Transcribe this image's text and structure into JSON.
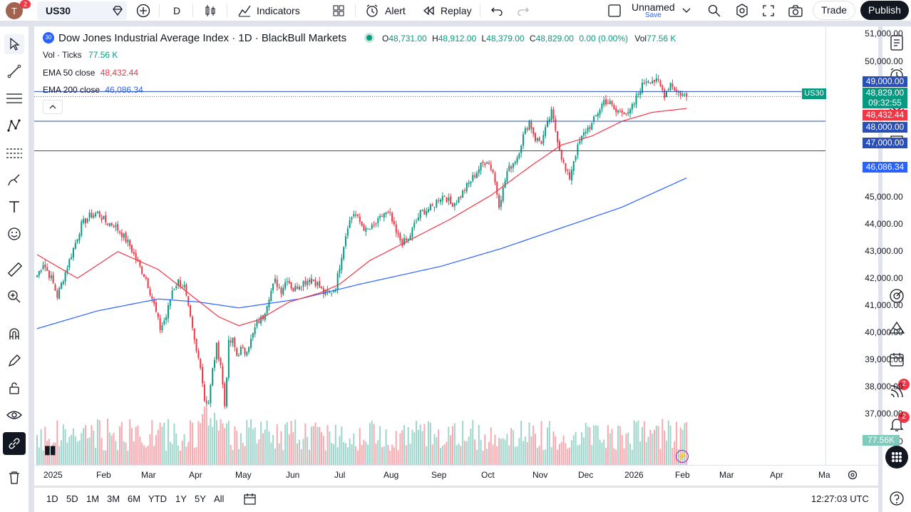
{
  "topbar": {
    "avatar_letter": "T",
    "avatar_badge": "2",
    "symbol": "US30",
    "interval": "D",
    "indicators_label": "Indicators",
    "alert_label": "Alert",
    "replay_label": "Replay",
    "layout_name": "Unnamed",
    "layout_sub": "Save",
    "trade_label": "Trade",
    "publish_label": "Publish"
  },
  "legend": {
    "symbol_badge": "30",
    "title": "Dow Jones Industrial Average Index · 1D · BlackBull Markets",
    "o_label": "O",
    "o_value": "48,731.00",
    "h_label": "H",
    "h_value": "48,912.00",
    "l_label": "L",
    "l_value": "48,379.00",
    "c_label": "C",
    "c_value": "48,829.00",
    "change": "0.00 (0.00%)",
    "vol_label": "Vol",
    "vol_value": "77.56 K",
    "vol_ticks_label": "Vol · Ticks",
    "vol_ticks_value": "77.56 K",
    "ema50_label": "EMA 50 close",
    "ema50_value": "48,432.44",
    "ema200_label": "EMA 200 close",
    "ema200_value": "46,086.34"
  },
  "price_axis": {
    "labels": [
      "51,000.00",
      "50,000.00",
      "49,000.00",
      "48,000.00",
      "47,000.00",
      "45,000.00",
      "44,000.00",
      "43,000.00",
      "42,000.00",
      "41,000.00",
      "40,000.00",
      "39,000.00",
      "38,000.00",
      "37,000.00",
      "00"
    ],
    "badges": {
      "line_49000": "49,000.00",
      "last_price": "48,829.00",
      "countdown": "09:32:55",
      "ema50": "48,432.44",
      "line_48000": "48,000.00",
      "line_47000": "47,000.00",
      "ema200": "46,086.34",
      "volume": "77.56K",
      "symbol_tag": "US30"
    }
  },
  "time_axis": [
    "2025",
    "Feb",
    "Mar",
    "Apr",
    "May",
    "Jun",
    "Jul",
    "Aug",
    "Sep",
    "Oct",
    "Nov",
    "Dec",
    "2026",
    "Feb",
    "Mar",
    "Apr",
    "Ma"
  ],
  "bottombar": {
    "ranges": [
      "1D",
      "5D",
      "1M",
      "3M",
      "6M",
      "YTD",
      "1Y",
      "5Y",
      "All"
    ],
    "clock": "12:27:03 UTC"
  },
  "rightbar_badges": {
    "ideas": "2",
    "notifications": "2"
  },
  "colors": {
    "up": "#089981",
    "down": "#f23645",
    "ema50": "#f23645",
    "ema200": "#2962ff",
    "hline": "#2a4fb5",
    "accent": "#2962ff"
  },
  "chart_data": {
    "type": "candlestick",
    "ylim": [
      36400,
      51200
    ],
    "horizontal_lines": [
      49000,
      48000,
      47000
    ],
    "anchors": [
      [
        0,
        42800
      ],
      [
        3,
        43200
      ],
      [
        7,
        42700
      ],
      [
        10,
        42100
      ],
      [
        14,
        42900
      ],
      [
        18,
        43700
      ],
      [
        22,
        44500
      ],
      [
        26,
        44800
      ],
      [
        30,
        44900
      ],
      [
        34,
        44600
      ],
      [
        38,
        44500
      ],
      [
        42,
        44200
      ],
      [
        46,
        43800
      ],
      [
        50,
        43200
      ],
      [
        54,
        42700
      ],
      [
        58,
        41800
      ],
      [
        61,
        41000
      ],
      [
        64,
        41400
      ],
      [
        67,
        42300
      ],
      [
        70,
        42600
      ],
      [
        73,
        42400
      ],
      [
        76,
        41300
      ],
      [
        79,
        40200
      ],
      [
        81,
        39800
      ],
      [
        83,
        38600
      ],
      [
        85,
        38500
      ],
      [
        87,
        39600
      ],
      [
        89,
        40400
      ],
      [
        91,
        39800
      ],
      [
        93,
        38400
      ],
      [
        95,
        40500
      ],
      [
        97,
        40600
      ],
      [
        99,
        40100
      ],
      [
        101,
        40300
      ],
      [
        103,
        40200
      ],
      [
        106,
        40600
      ],
      [
        109,
        41200
      ],
      [
        112,
        41400
      ],
      [
        115,
        42100
      ],
      [
        118,
        42600
      ],
      [
        121,
        42300
      ],
      [
        124,
        42700
      ],
      [
        127,
        42300
      ],
      [
        130,
        42500
      ],
      [
        133,
        42600
      ],
      [
        136,
        42700
      ],
      [
        139,
        42500
      ],
      [
        142,
        42200
      ],
      [
        145,
        42200
      ],
      [
        148,
        42400
      ],
      [
        151,
        43500
      ],
      [
        154,
        44500
      ],
      [
        157,
        44900
      ],
      [
        160,
        44600
      ],
      [
        163,
        44300
      ],
      [
        166,
        44400
      ],
      [
        169,
        44600
      ],
      [
        172,
        44900
      ],
      [
        175,
        44800
      ],
      [
        178,
        44200
      ],
      [
        181,
        43900
      ],
      [
        184,
        44000
      ],
      [
        187,
        44500
      ],
      [
        190,
        44900
      ],
      [
        193,
        45000
      ],
      [
        196,
        45100
      ],
      [
        199,
        45400
      ],
      [
        202,
        45500
      ],
      [
        205,
        45200
      ],
      [
        208,
        45300
      ],
      [
        211,
        45600
      ],
      [
        214,
        45900
      ],
      [
        217,
        46200
      ],
      [
        220,
        46500
      ],
      [
        223,
        46700
      ],
      [
        226,
        46300
      ],
      [
        229,
        45200
      ],
      [
        231,
        45700
      ],
      [
        233,
        46300
      ],
      [
        235,
        46500
      ],
      [
        238,
        46800
      ],
      [
        241,
        47500
      ],
      [
        244,
        48000
      ],
      [
        247,
        47400
      ],
      [
        250,
        47300
      ],
      [
        253,
        47900
      ],
      [
        255,
        48300
      ],
      [
        258,
        47400
      ],
      [
        260,
        46800
      ],
      [
        262,
        46300
      ],
      [
        264,
        46100
      ],
      [
        266,
        46700
      ],
      [
        269,
        47300
      ],
      [
        272,
        47700
      ],
      [
        275,
        47900
      ],
      [
        278,
        48300
      ],
      [
        281,
        48700
      ],
      [
        284,
        48600
      ],
      [
        287,
        48300
      ],
      [
        290,
        48400
      ],
      [
        293,
        48200
      ],
      [
        296,
        48600
      ],
      [
        299,
        49100
      ],
      [
        302,
        49400
      ],
      [
        305,
        49400
      ],
      [
        308,
        49300
      ],
      [
        311,
        48900
      ],
      [
        314,
        49300
      ],
      [
        317,
        49000
      ],
      [
        320,
        48900
      ],
      [
        322,
        48829
      ]
    ],
    "ema50_anchors": [
      [
        0,
        43500
      ],
      [
        20,
        42700
      ],
      [
        40,
        43600
      ],
      [
        60,
        43000
      ],
      [
        75,
        42200
      ],
      [
        90,
        41400
      ],
      [
        100,
        41100
      ],
      [
        110,
        41300
      ],
      [
        125,
        41900
      ],
      [
        140,
        42200
      ],
      [
        150,
        42500
      ],
      [
        165,
        43300
      ],
      [
        185,
        44000
      ],
      [
        205,
        44700
      ],
      [
        225,
        45500
      ],
      [
        245,
        46500
      ],
      [
        260,
        47200
      ],
      [
        275,
        47500
      ],
      [
        290,
        48000
      ],
      [
        305,
        48300
      ],
      [
        322,
        48432
      ]
    ],
    "ema200_anchors": [
      [
        0,
        41000
      ],
      [
        30,
        41600
      ],
      [
        60,
        42000
      ],
      [
        80,
        41900
      ],
      [
        100,
        41700
      ],
      [
        130,
        42000
      ],
      [
        160,
        42500
      ],
      [
        200,
        43100
      ],
      [
        230,
        43700
      ],
      [
        260,
        44400
      ],
      [
        290,
        45100
      ],
      [
        322,
        46086
      ]
    ],
    "last_volume": "77.56K"
  }
}
